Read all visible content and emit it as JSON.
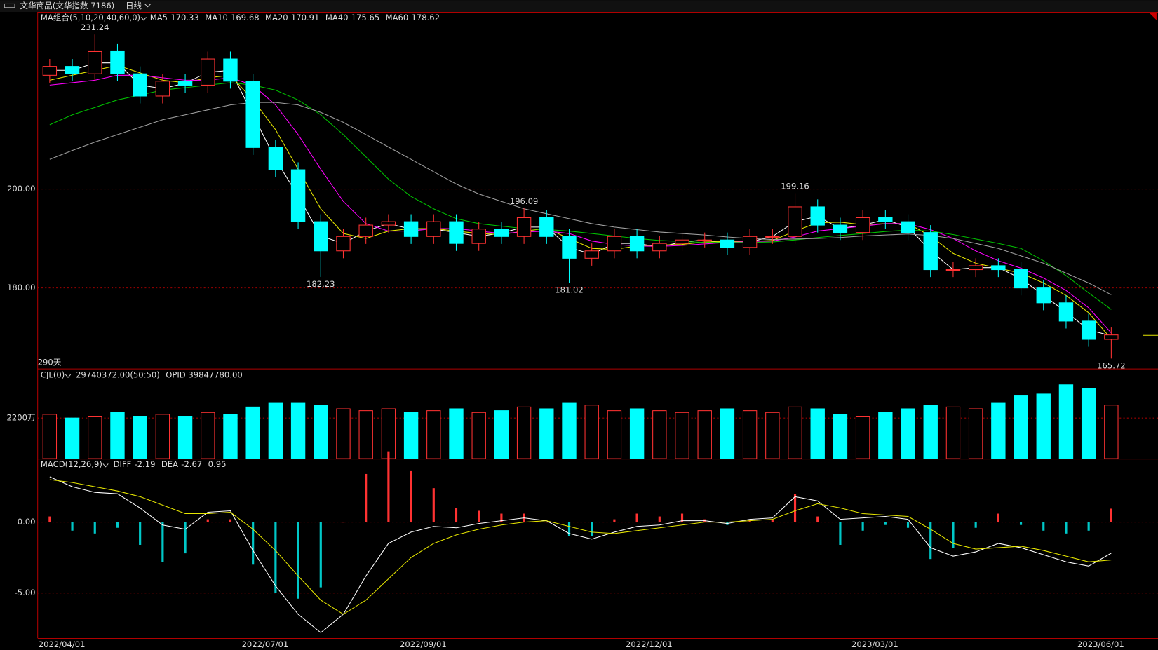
{
  "header": {
    "title": "文华商品(文华指数 7186)",
    "period": "日线"
  },
  "chart_data": [
    {
      "type": "candlestick",
      "legend_title": "MA组合(5,10,20,40,60,0)",
      "days_label": "290天",
      "ylim": [
        163.7,
        235.5
      ],
      "yticks": [
        {
          "value": 180,
          "label": "180.00"
        },
        {
          "value": 200,
          "label": "200.00"
        }
      ],
      "grid": true,
      "up_color": "#ff3232",
      "down_color": "#00ffff",
      "open": [
        223,
        224.8,
        223.3,
        227.8,
        223.3,
        218.8,
        221.8,
        221,
        226.3,
        221.8,
        208.4,
        203.9,
        193.4,
        187.5,
        190.4,
        192.7,
        193.4,
        190.4,
        193.4,
        189,
        191.9,
        190.4,
        194.2,
        190.4,
        186,
        187.5,
        190.4,
        187.5,
        189,
        189.7,
        189.7,
        188.2,
        190.4,
        190.4,
        196.4,
        192.7,
        191.2,
        194.2,
        193.4,
        191.2,
        183.7,
        183.7,
        184.5,
        183.7,
        180,
        177,
        173.3,
        169.6
      ],
      "high": [
        226.3,
        226.3,
        231.24,
        229.3,
        224.8,
        223.3,
        223.3,
        227.8,
        227.8,
        223.3,
        209.9,
        205.4,
        194.9,
        191.9,
        194.2,
        194.9,
        194.9,
        194.9,
        194.9,
        193.4,
        193.4,
        196.09,
        195.7,
        191.9,
        189,
        191.9,
        191.9,
        190.5,
        191.2,
        191.2,
        191.2,
        191.9,
        191.9,
        199.16,
        197.9,
        194.2,
        195.7,
        195.7,
        194.9,
        192.7,
        185.2,
        186,
        186,
        185.2,
        181.5,
        178.5,
        174.8,
        172
      ],
      "low": [
        221.5,
        221.8,
        221.8,
        221.8,
        217.3,
        217.3,
        219.5,
        219.5,
        220.3,
        206.9,
        202.4,
        191.9,
        182.23,
        186,
        188.9,
        191.2,
        188.9,
        188.9,
        187.5,
        187.5,
        188.9,
        188.9,
        188.9,
        181.02,
        184.5,
        186,
        186,
        186,
        187.5,
        188.2,
        186.7,
        186.7,
        188.9,
        188.9,
        191.2,
        189.7,
        189.7,
        191.9,
        189.7,
        182.2,
        182.2,
        182.2,
        182.2,
        178.5,
        175.5,
        171.8,
        168.1,
        165.72
      ],
      "close": [
        224.8,
        223.3,
        227.8,
        223.3,
        218.8,
        221.8,
        221,
        226.3,
        221.8,
        208.4,
        203.9,
        193.4,
        187.5,
        190.4,
        192.7,
        193.4,
        190.4,
        193.4,
        189,
        191.9,
        190.4,
        194.2,
        190.4,
        186,
        187.5,
        190.4,
        187.5,
        189,
        189.7,
        189.7,
        188.2,
        190.4,
        190.4,
        196.4,
        192.7,
        191.2,
        194.2,
        193.4,
        191.2,
        183.7,
        183.7,
        184.5,
        183.7,
        180,
        177,
        173.3,
        169.6,
        170.5
      ],
      "high_labels": [
        2,
        21,
        33
      ],
      "low_labels": [
        12,
        23,
        47
      ],
      "high_label_color": "#ff3232",
      "low_label_color": "#00ffff",
      "series": [
        {
          "name": "MA5",
          "color": "#ffffff",
          "values": [
            224,
            224,
            225.5,
            225.5,
            221,
            220.3,
            221.4,
            223.6,
            224,
            215,
            206,
            198.6,
            190.5,
            189,
            191.5,
            193,
            191.9,
            191.9,
            191.2,
            190.4,
            191.1,
            192.3,
            192.3,
            188.2,
            186.8,
            189,
            189,
            188.3,
            189.3,
            189.7,
            189,
            189.3,
            190.4,
            193.4,
            194.5,
            192,
            192.7,
            193.8,
            192.3,
            187.5,
            183.7,
            184.1,
            184.1,
            181.9,
            178.5,
            175.2,
            171.5,
            170.33
          ]
        },
        {
          "name": "MA10",
          "color": "#e6e600",
          "values": [
            222,
            223,
            224,
            225,
            223.5,
            222,
            221.5,
            222.5,
            223,
            218,
            212,
            204,
            196,
            191,
            190,
            191.5,
            192,
            192,
            191.5,
            191,
            190.8,
            191.5,
            192,
            190,
            188,
            187.8,
            188.5,
            188.7,
            188.8,
            189.3,
            189.4,
            189.4,
            189.6,
            191.5,
            193.2,
            193.3,
            192.8,
            193,
            193,
            190.5,
            187,
            185,
            184,
            183,
            181,
            178.5,
            175,
            169.68
          ]
        },
        {
          "name": "MA20",
          "color": "#ff00ff",
          "values": [
            221,
            221.5,
            222,
            223,
            223,
            222.5,
            222,
            222,
            222.5,
            221,
            217,
            211,
            204,
            197.5,
            193,
            191.5,
            191.5,
            192,
            192,
            191.5,
            191,
            191.3,
            191.5,
            191,
            189.5,
            188.8,
            188.5,
            188.4,
            188.6,
            188.9,
            189.2,
            189.4,
            189.5,
            190.3,
            191.5,
            192,
            192.5,
            193,
            193,
            191.8,
            190,
            187.5,
            185.5,
            184,
            182,
            179.5,
            176,
            170.91
          ]
        },
        {
          "name": "MA40",
          "color": "#00c000",
          "values": [
            213,
            215,
            216.5,
            218,
            219,
            220,
            220.5,
            221,
            221.5,
            221,
            220,
            218,
            215,
            211,
            206.5,
            202,
            198.5,
            196,
            194,
            193,
            192.5,
            192,
            191.8,
            191.5,
            191,
            190.5,
            190,
            189.6,
            189.4,
            189.2,
            189.2,
            189.2,
            189.3,
            189.7,
            190.2,
            190.6,
            191,
            191.4,
            191.7,
            191.5,
            190.8,
            189.9,
            189,
            188,
            185.5,
            182.5,
            179,
            175.65
          ]
        },
        {
          "name": "MA60",
          "color": "#a0a0a0",
          "values": [
            206,
            207.8,
            209.5,
            211,
            212.5,
            214,
            215,
            216,
            217,
            217.5,
            217.5,
            217,
            215.5,
            213.5,
            211,
            208.5,
            206,
            203.5,
            201,
            199,
            197.5,
            196,
            195,
            194,
            193,
            192.3,
            191.8,
            191.3,
            191,
            190.7,
            190.3,
            190,
            189.8,
            189.9,
            190,
            190.2,
            190.5,
            190.7,
            190.9,
            190.6,
            190,
            189,
            188,
            186.5,
            185,
            183,
            181,
            178.62
          ]
        }
      ]
    },
    {
      "type": "bar",
      "title": "CJL(0)",
      "info": [
        "29740372.00(50:50)",
        "OPID 39847780.00"
      ],
      "ylim": [
        0,
        4840
      ],
      "yticks": [
        {
          "value": 2200,
          "label": "2200万"
        }
      ],
      "values": [
        2400,
        2200,
        2300,
        2500,
        2300,
        2400,
        2300,
        2500,
        2400,
        2800,
        3000,
        3000,
        2900,
        2700,
        2600,
        2700,
        2500,
        2600,
        2700,
        2500,
        2600,
        2800,
        2700,
        3000,
        2900,
        2600,
        2700,
        2600,
        2500,
        2600,
        2700,
        2600,
        2500,
        2800,
        2700,
        2400,
        2300,
        2500,
        2700,
        2900,
        2800,
        2700,
        3000,
        3400,
        3500,
        4000,
        3800,
        2900
      ]
    },
    {
      "type": "macd",
      "title": "MACD(12,26,9)",
      "ylim": [
        -8.18,
        4.43
      ],
      "yticks": [
        {
          "value": 0,
          "label": "0.00"
        },
        {
          "value": -5,
          "label": "-5.00"
        }
      ],
      "grid": true,
      "categories": [
        "2022/04/01",
        null,
        null,
        null,
        null,
        null,
        null,
        null,
        null,
        "2022/07/01",
        null,
        null,
        null,
        null,
        null,
        null,
        "2022/09/01",
        null,
        null,
        null,
        null,
        null,
        null,
        null,
        null,
        null,
        "2022/12/01",
        null,
        null,
        null,
        null,
        null,
        null,
        null,
        null,
        null,
        "2023/03/01",
        null,
        null,
        null,
        null,
        null,
        null,
        null,
        null,
        null,
        "2023/06/01",
        null
      ],
      "series": [
        {
          "name": "DIFF",
          "color": "#ffffff",
          "values": [
            3.2,
            2.5,
            2.1,
            2.0,
            1.0,
            -0.2,
            -0.5,
            0.7,
            0.8,
            -2.0,
            -4.5,
            -6.5,
            -7.8,
            -6.5,
            -3.8,
            -1.5,
            -0.7,
            -0.3,
            -0.4,
            -0.1,
            0.1,
            0.3,
            0.1,
            -0.8,
            -1.2,
            -0.7,
            -0.3,
            -0.2,
            0.1,
            0.1,
            -0.1,
            0.2,
            0.3,
            1.8,
            1.5,
            0.2,
            0.3,
            0.4,
            0.2,
            -1.8,
            -2.4,
            -2.1,
            -1.5,
            -1.8,
            -2.3,
            -2.8,
            -3.1,
            -2.19
          ]
        },
        {
          "name": "DEA",
          "color": "#e6e600",
          "values": [
            3.0,
            2.8,
            2.5,
            2.2,
            1.8,
            1.2,
            0.6,
            0.6,
            0.7,
            -0.5,
            -2.0,
            -3.8,
            -5.5,
            -6.5,
            -5.5,
            -4.0,
            -2.5,
            -1.5,
            -0.9,
            -0.5,
            -0.2,
            0.0,
            0.1,
            -0.3,
            -0.7,
            -0.8,
            -0.6,
            -0.4,
            -0.2,
            0.0,
            0.0,
            0.1,
            0.2,
            0.8,
            1.3,
            1.0,
            0.6,
            0.5,
            0.4,
            -0.5,
            -1.5,
            -1.9,
            -1.8,
            -1.7,
            -2.0,
            -2.4,
            -2.8,
            -2.67
          ]
        }
      ],
      "histogram": {
        "up_color": "#ff3232",
        "down_color": "#00c8c8",
        "values": [
          0.4,
          -0.6,
          -0.8,
          -0.4,
          -1.6,
          -2.8,
          -2.2,
          0.2,
          0.2,
          -3.0,
          -5.0,
          -5.4,
          -4.6,
          0,
          3.4,
          5.0,
          3.6,
          2.4,
          1.0,
          0.8,
          0.6,
          0.6,
          0,
          -1.0,
          -1.0,
          0.2,
          0.6,
          0.4,
          0.6,
          0.2,
          -0.2,
          0.2,
          0.2,
          2.0,
          0.4,
          -1.6,
          -0.6,
          -0.2,
          -0.4,
          -2.6,
          -1.8,
          -0.4,
          0.6,
          -0.2,
          -0.6,
          -0.8,
          -0.6,
          0.95
        ]
      }
    }
  ]
}
